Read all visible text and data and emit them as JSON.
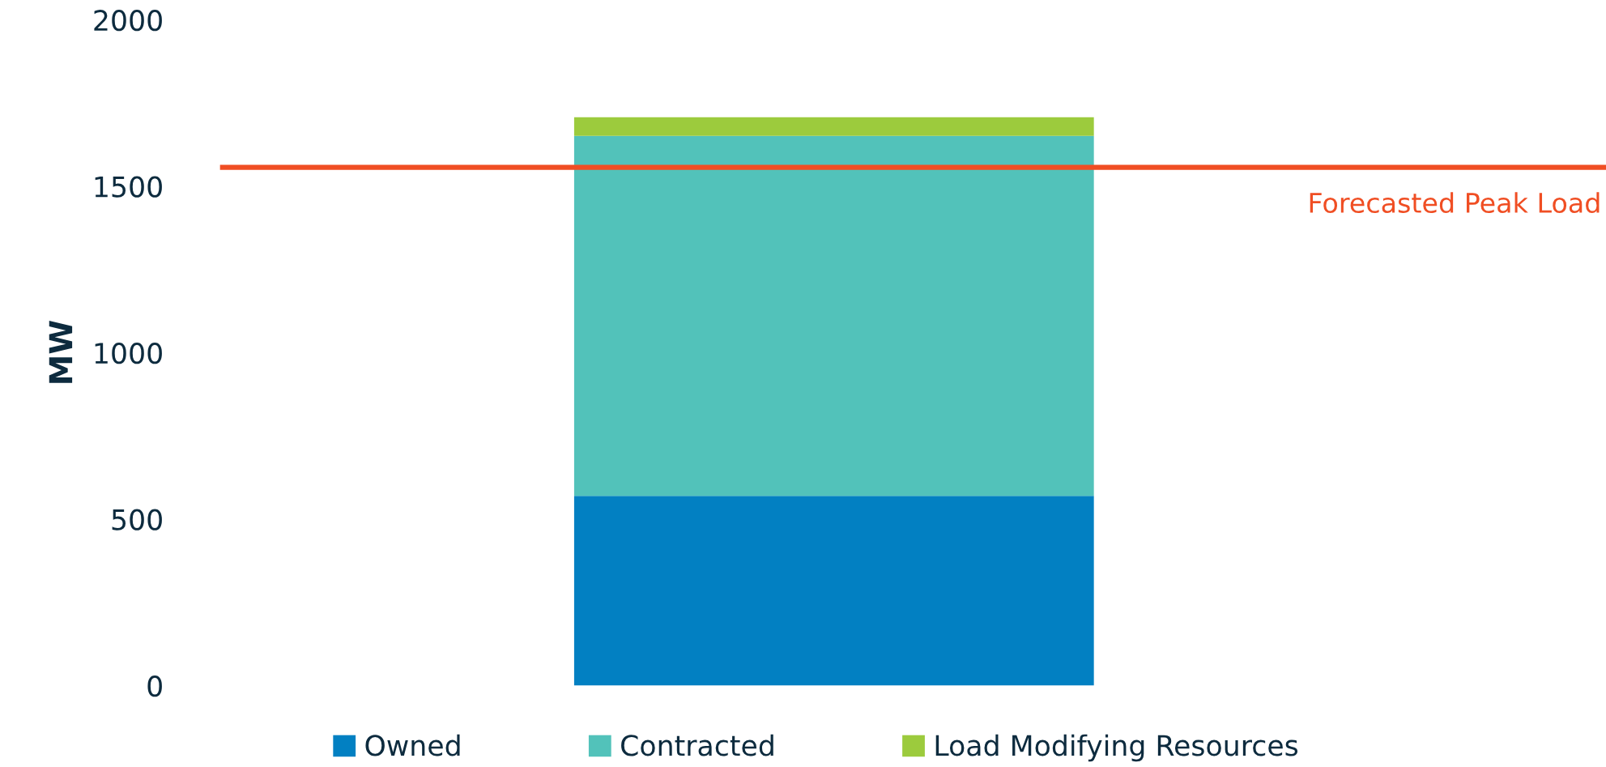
{
  "chart_data": {
    "type": "bar",
    "stacked": true,
    "categories": [
      null
    ],
    "ylabel": "MW",
    "series": [
      {
        "name": "Owned",
        "color": "#0280c2",
        "values": [
          570
        ]
      },
      {
        "name": "Contracted",
        "color": "#52c2ba",
        "values": [
          1082
        ]
      },
      {
        "name": "Load Modifying Resources",
        "color": "#9ccb3d",
        "values": [
          56
        ]
      }
    ],
    "ylim": [
      0,
      2000
    ],
    "yticks": [
      0,
      500,
      1000,
      1500,
      2000
    ],
    "ref_lines": [
      {
        "axis": "y",
        "value": 1557,
        "label": "Forecasted Peak Load",
        "color": "#f04e23",
        "line_style": "solid"
      }
    ],
    "grid": false,
    "legend": "bottom",
    "tick_labels": "y"
  }
}
